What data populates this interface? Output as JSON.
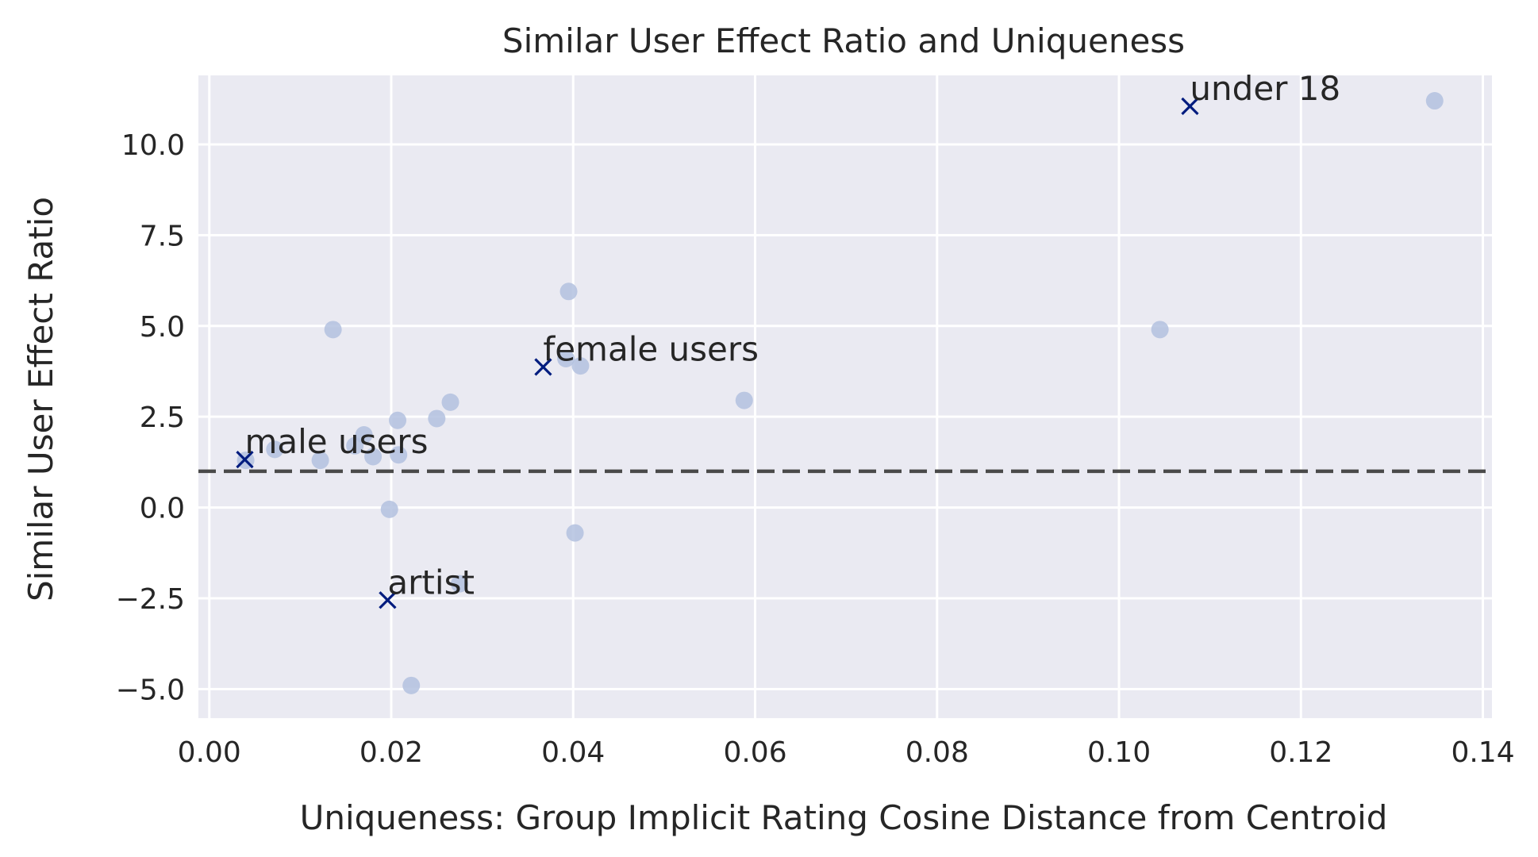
{
  "chart_data": {
    "type": "scatter",
    "title": "Similar User Effect Ratio and Uniqueness",
    "xlabel": "Uniqueness: Group Implicit Rating Cosine Distance from Centroid",
    "ylabel": "Similar User Effect Ratio",
    "xlim": [
      -0.0012,
      0.141
    ],
    "ylim": [
      -5.8,
      11.9
    ],
    "x_ticks": [
      0.0,
      0.02,
      0.04,
      0.06,
      0.08,
      0.1,
      0.12,
      0.14
    ],
    "x_tick_labels": [
      "0.00",
      "0.02",
      "0.04",
      "0.06",
      "0.08",
      "0.10",
      "0.12",
      "0.14"
    ],
    "y_ticks": [
      -5.0,
      -2.5,
      0.0,
      2.5,
      5.0,
      7.5,
      10.0
    ],
    "y_tick_labels": [
      "−5.0",
      "−2.5",
      "0.0",
      "2.5",
      "5.0",
      "7.5",
      "10.0"
    ],
    "grid": true,
    "background_color": "#eaeaf2",
    "grid_color": "#ffffff",
    "reference_line": {
      "y": 1.0,
      "style": "dashed",
      "color": "#4a4a4a"
    },
    "series": [
      {
        "marker": "circle",
        "color": "#b3c1df",
        "points": [
          {
            "x": 0.004,
            "y": 1.3
          },
          {
            "x": 0.0072,
            "y": 1.6
          },
          {
            "x": 0.0122,
            "y": 1.3
          },
          {
            "x": 0.0136,
            "y": 4.9
          },
          {
            "x": 0.016,
            "y": 1.7
          },
          {
            "x": 0.017,
            "y": 2.0
          },
          {
            "x": 0.018,
            "y": 1.4
          },
          {
            "x": 0.0198,
            "y": -0.05
          },
          {
            "x": 0.0207,
            "y": 2.4
          },
          {
            "x": 0.0208,
            "y": 1.45
          },
          {
            "x": 0.0222,
            "y": -4.9
          },
          {
            "x": 0.025,
            "y": 2.45
          },
          {
            "x": 0.0265,
            "y": 2.9
          },
          {
            "x": 0.0275,
            "y": -2.1
          },
          {
            "x": 0.0395,
            "y": 5.95
          },
          {
            "x": 0.0392,
            "y": 4.1
          },
          {
            "x": 0.0408,
            "y": 3.9
          },
          {
            "x": 0.0402,
            "y": -0.7
          },
          {
            "x": 0.0588,
            "y": 2.95
          },
          {
            "x": 0.1045,
            "y": 4.9
          },
          {
            "x": 0.1347,
            "y": 11.2
          }
        ]
      },
      {
        "marker": "x",
        "color": "#001c7f",
        "points": [
          {
            "x": 0.0039,
            "y": 1.32,
            "label": "male users"
          },
          {
            "x": 0.0367,
            "y": 3.87,
            "label": "female users"
          },
          {
            "x": 0.0196,
            "y": -2.55,
            "label": "artist"
          },
          {
            "x": 0.1078,
            "y": 11.05,
            "label": "under 18"
          }
        ]
      }
    ]
  }
}
